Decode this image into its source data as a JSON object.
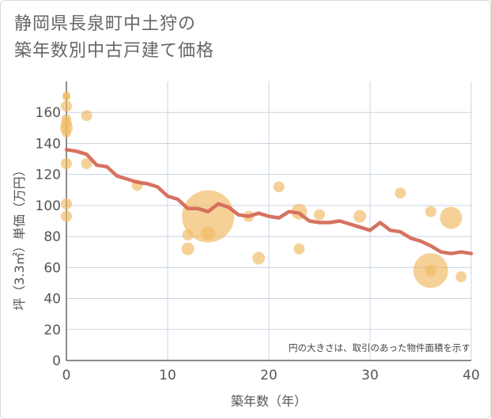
{
  "title_lines": [
    "静岡県長泉町中土狩の",
    "築年数別中古戸建て価格"
  ],
  "colors": {
    "bubble": "#f0b85f",
    "line": "#d46a58",
    "grid": "#c8d4e0",
    "text": "#555555"
  },
  "chart_data": {
    "type": "scatter",
    "xlabel": "築年数（年）",
    "ylabel": "坪（3.3㎡）単価（万円）",
    "xlim": [
      0,
      40
    ],
    "ylim": [
      0,
      180
    ],
    "xticks": [
      0,
      10,
      20,
      30,
      40
    ],
    "yticks": [
      0,
      20,
      40,
      60,
      80,
      100,
      120,
      140,
      160
    ],
    "grid": true,
    "annotation": "円の大きさは、取引のあった物件面積を示す",
    "bubbles": [
      {
        "x": 0,
        "y": 171,
        "r": 5
      },
      {
        "x": 0,
        "y": 170,
        "r": 5
      },
      {
        "x": 0,
        "y": 164,
        "r": 7
      },
      {
        "x": 0,
        "y": 156,
        "r": 6
      },
      {
        "x": 0,
        "y": 153,
        "r": 7
      },
      {
        "x": 0,
        "y": 150,
        "r": 8
      },
      {
        "x": 0,
        "y": 147,
        "r": 6
      },
      {
        "x": 0,
        "y": 127,
        "r": 7
      },
      {
        "x": 0,
        "y": 101,
        "r": 7
      },
      {
        "x": 0,
        "y": 93,
        "r": 7
      },
      {
        "x": 2,
        "y": 158,
        "r": 7
      },
      {
        "x": 2,
        "y": 127,
        "r": 7
      },
      {
        "x": 7,
        "y": 113,
        "r": 7
      },
      {
        "x": 12,
        "y": 81,
        "r": 7
      },
      {
        "x": 12,
        "y": 72,
        "r": 8
      },
      {
        "x": 14,
        "y": 93,
        "r": 33
      },
      {
        "x": 14,
        "y": 82,
        "r": 9
      },
      {
        "x": 18,
        "y": 93,
        "r": 7
      },
      {
        "x": 19,
        "y": 66,
        "r": 8
      },
      {
        "x": 21,
        "y": 112,
        "r": 7
      },
      {
        "x": 23,
        "y": 96,
        "r": 10
      },
      {
        "x": 23,
        "y": 72,
        "r": 7
      },
      {
        "x": 25,
        "y": 94,
        "r": 7
      },
      {
        "x": 29,
        "y": 93,
        "r": 8
      },
      {
        "x": 33,
        "y": 108,
        "r": 7
      },
      {
        "x": 36,
        "y": 96,
        "r": 7
      },
      {
        "x": 36,
        "y": 58,
        "r": 22
      },
      {
        "x": 36,
        "y": 58,
        "r": 7
      },
      {
        "x": 38,
        "y": 92,
        "r": 14
      },
      {
        "x": 39,
        "y": 54,
        "r": 7
      }
    ],
    "series": [
      {
        "x": [
          0,
          1,
          2,
          3,
          4,
          5,
          6,
          7,
          8,
          9,
          10,
          11,
          12,
          13,
          14,
          15,
          16,
          17,
          18,
          19,
          20,
          21,
          22,
          23,
          24,
          25,
          26,
          27,
          28,
          29,
          30,
          31,
          32,
          33,
          34,
          35,
          36,
          37,
          38,
          39,
          40
        ],
        "values": [
          136,
          135,
          133,
          126,
          125,
          119,
          117,
          115,
          114,
          112,
          106,
          104,
          98,
          98,
          96,
          101,
          99,
          94,
          93,
          95,
          93,
          92,
          96,
          95,
          90,
          89,
          89,
          90,
          88,
          86,
          84,
          89,
          84,
          83,
          79,
          77,
          74,
          70,
          69,
          70,
          69
        ]
      }
    ]
  }
}
